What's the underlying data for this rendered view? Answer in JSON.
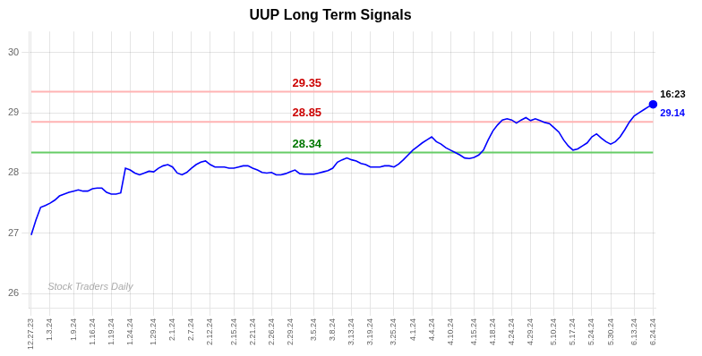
{
  "chart_data": {
    "type": "line",
    "title": "UUP Long Term Signals",
    "categories": [
      "12.27.23",
      null,
      null,
      null,
      "1.3.24",
      null,
      null,
      null,
      null,
      "1.9.24",
      null,
      null,
      null,
      "1.16.24",
      null,
      null,
      null,
      "1.19.24",
      null,
      null,
      null,
      "1.24.24",
      null,
      null,
      null,
      null,
      "1.29.24",
      null,
      null,
      null,
      "2.1.24",
      null,
      null,
      null,
      "2.7.24",
      null,
      null,
      null,
      "2.12.24",
      null,
      null,
      null,
      null,
      "2.15.24",
      null,
      null,
      null,
      "2.21.24",
      null,
      null,
      null,
      "2.26.24",
      null,
      null,
      null,
      "2.29.24",
      null,
      null,
      null,
      null,
      "3.5.24",
      null,
      null,
      null,
      "3.8.24",
      null,
      null,
      null,
      "3.13.24",
      null,
      null,
      null,
      "3.19.24",
      null,
      null,
      null,
      null,
      "3.25.24",
      null,
      null,
      null,
      "4.1.24",
      null,
      null,
      null,
      "4.4.24",
      null,
      null,
      null,
      "4.10.24",
      null,
      null,
      null,
      null,
      "4.15.24",
      null,
      null,
      null,
      "4.18.24",
      null,
      null,
      null,
      "4.24.24",
      null,
      null,
      null,
      "4.29.24",
      null,
      null,
      null,
      null,
      "5.10.24",
      null,
      null,
      null,
      "5.17.24",
      null,
      null,
      null,
      "5.24.24",
      null,
      null,
      null,
      "5.30.24",
      null,
      null,
      null,
      null,
      "6.13.24",
      null,
      null,
      null,
      "6.24.24"
    ],
    "series": [
      {
        "color": "blue",
        "marker": "circle",
        "values": [
          26.97,
          27.22,
          27.43,
          27.46,
          27.5,
          27.55,
          27.62,
          27.65,
          27.68,
          27.7,
          27.72,
          27.7,
          27.7,
          27.74,
          27.75,
          27.75,
          27.68,
          27.65,
          27.65,
          27.67,
          28.08,
          28.05,
          28.0,
          27.97,
          28.0,
          28.03,
          28.02,
          28.08,
          28.12,
          28.14,
          28.1,
          28.0,
          27.97,
          28.01,
          28.08,
          28.14,
          28.18,
          28.2,
          28.14,
          28.1,
          28.1,
          28.1,
          28.08,
          28.08,
          28.1,
          28.12,
          28.12,
          28.08,
          28.05,
          28.01,
          28.0,
          28.01,
          27.97,
          27.97,
          27.99,
          28.02,
          28.05,
          27.99,
          27.98,
          27.98,
          27.98,
          28.0,
          28.02,
          28.04,
          28.08,
          28.18,
          28.22,
          28.25,
          28.22,
          28.2,
          28.16,
          28.14,
          28.1,
          28.1,
          28.1,
          28.12,
          28.12,
          28.1,
          28.15,
          28.22,
          28.3,
          28.38,
          28.44,
          28.5,
          28.55,
          28.6,
          28.52,
          28.48,
          28.42,
          28.38,
          28.34,
          28.3,
          28.25,
          28.24,
          28.26,
          28.3,
          28.38,
          28.55,
          28.7,
          28.8,
          28.88,
          28.9,
          28.88,
          28.83,
          28.88,
          28.92,
          28.87,
          28.9,
          28.87,
          28.84,
          28.82,
          28.75,
          28.68,
          28.55,
          28.45,
          28.38,
          28.4,
          28.45,
          28.5,
          28.6,
          28.65,
          28.58,
          28.52,
          28.48,
          28.52,
          28.6,
          28.72,
          28.85,
          28.95,
          29.0,
          29.05,
          29.1,
          29.14
        ]
      }
    ],
    "ylim": [
      25.75,
      30.35
    ],
    "yticks": [
      26,
      27,
      28,
      29,
      30
    ],
    "grid": true,
    "reference_lines": [
      {
        "y": 29.35,
        "label": "29.35",
        "color": "#ffb3b3",
        "label_color": "#cc0000"
      },
      {
        "y": 28.85,
        "label": "28.85",
        "color": "#ffb3b3",
        "label_color": "#cc0000"
      },
      {
        "y": 28.34,
        "label": "28.34",
        "color": "#66cc66",
        "label_color": "#007700"
      }
    ],
    "annotations": [
      "16:23",
      "29.14"
    ],
    "watermark": "Stock Traders Daily"
  }
}
